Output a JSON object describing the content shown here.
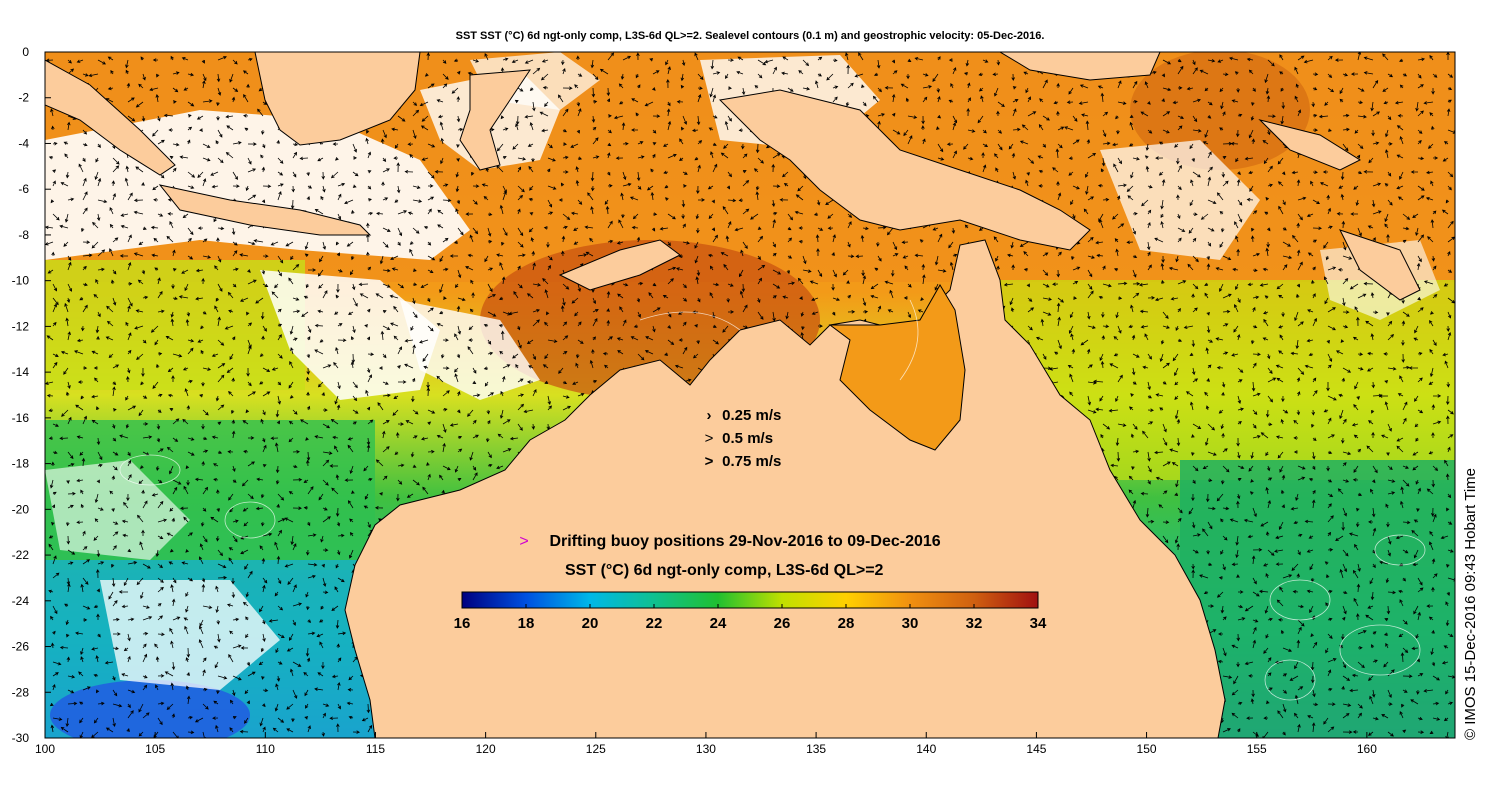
{
  "title": "SST SST (°C) 6d ngt-only comp, L3S-6d QL>=2. Sealevel contours (0.1 m) and geostrophic velocity: 05-Dec-2016.",
  "x_ticks": [
    100,
    105,
    110,
    115,
    120,
    125,
    130,
    135,
    140,
    145,
    150,
    155,
    160
  ],
  "y_ticks": [
    0,
    -2,
    -4,
    -6,
    -8,
    -10,
    -12,
    -14,
    -16,
    -18,
    -20,
    -22,
    -24,
    -26,
    -28,
    -30
  ],
  "xlim": [
    100,
    164
  ],
  "ylim": [
    -30,
    0
  ],
  "velocity_legend": [
    {
      "label": "0.25 m/s",
      "symbol": "›"
    },
    {
      "label": "0.5 m/s",
      "symbol": ">"
    },
    {
      "label": "0.75 m/s",
      "symbol": ">"
    }
  ],
  "buoy_legend": {
    "symbol": ">",
    "label": "Drifting buoy positions 29-Nov-2016 to 09-Dec-2016",
    "color": "#d000d0"
  },
  "colorbar": {
    "title": "SST (°C) 6d ngt-only comp, L3S-6d QL>=2",
    "min": 16,
    "max": 34,
    "tick_values": [
      16,
      18,
      20,
      22,
      24,
      26,
      28,
      30,
      32,
      34
    ],
    "colors": [
      "#000080",
      "#0050e0",
      "#00b8e8",
      "#10c090",
      "#20c030",
      "#c0e000",
      "#ffd000",
      "#f09010",
      "#d06010",
      "#a01010"
    ]
  },
  "credit": "© IMOS 15-Dec-2016 09:43 Hobart Time",
  "colors": {
    "land": "#fccc9c",
    "no_data": "#ffffff"
  }
}
